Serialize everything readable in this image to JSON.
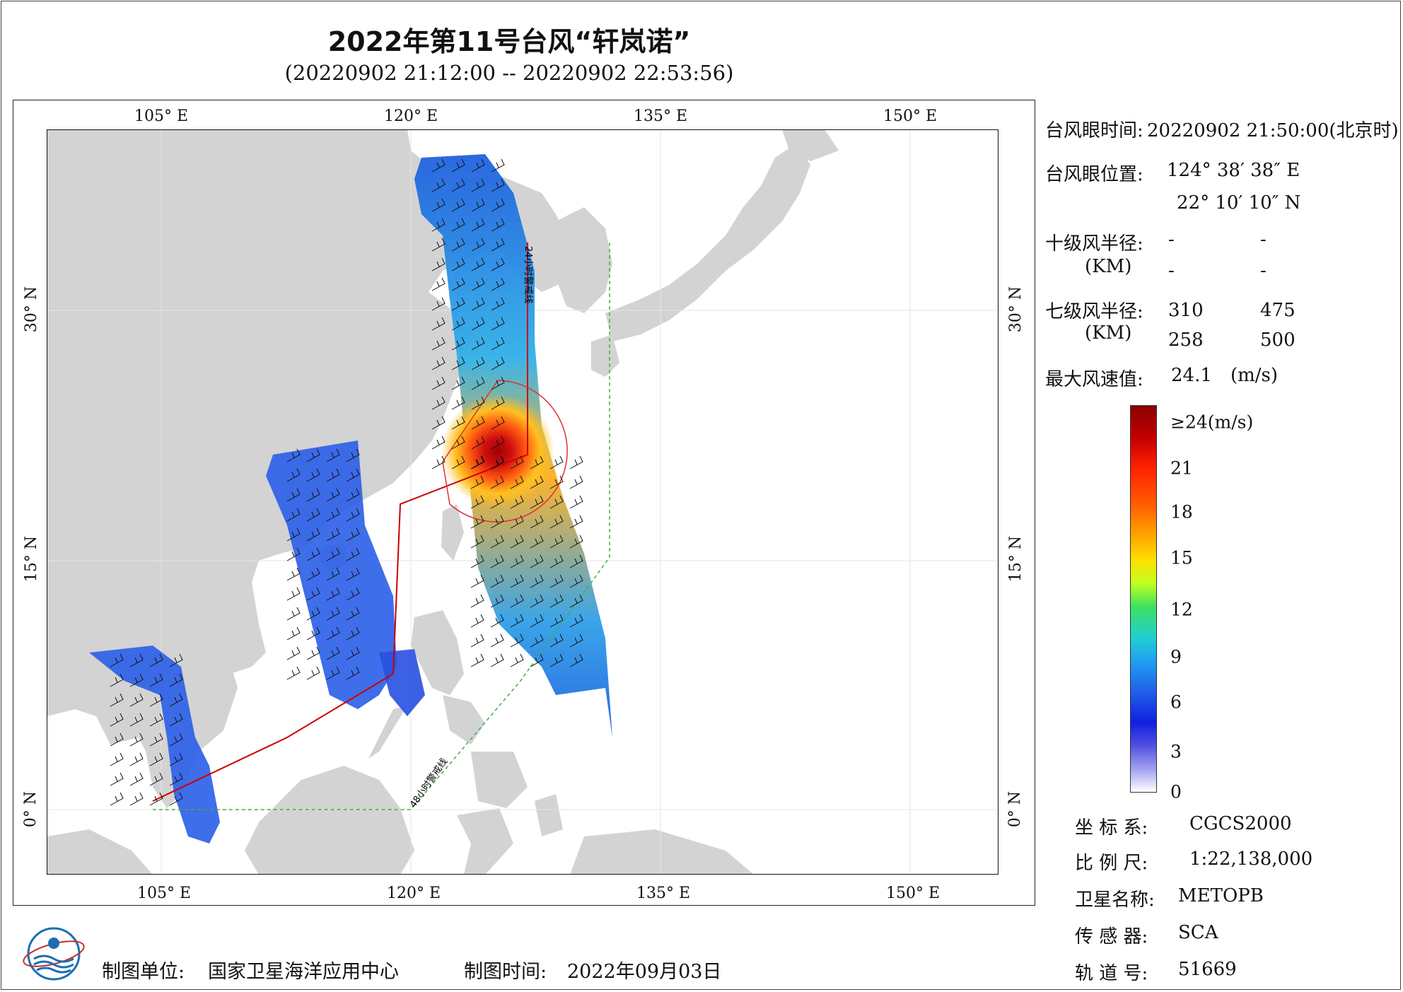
{
  "title": "2022年第11号台风“轩岚诺”",
  "subtitle": "(20220902 21:12:00 -- 20220902 22:53:56)",
  "lon_ticks_top": [
    "105° E",
    "120° E",
    "135° E",
    "150° E"
  ],
  "lon_ticks_bottom": [
    "105° E",
    "120° E",
    "135° E",
    "150° E"
  ],
  "lat_ticks": [
    "30° N",
    "15° N",
    "0° N"
  ],
  "line_labels": {
    "line24": "24小时警戒线",
    "line48": "48小时警戒线"
  },
  "colors": {
    "land": "#d3d3d3",
    "ocean": "#ffffff",
    "warn24": "#cc0000",
    "warn48": "#40b040",
    "circle": "#e03030"
  },
  "info": {
    "eye_time_label": "台风眼时间:",
    "eye_time_value": "20220902 21:50:00(北京时)",
    "eye_pos_label": "台风眼位置:",
    "eye_lon": "124° 38′ 38″ E",
    "eye_lat": "22° 10′ 10″ N",
    "r10_label": "十级风半径:",
    "r10_unit": "(KM)",
    "r10_values": [
      "-",
      "-",
      "-",
      "-"
    ],
    "r7_label": "七级风半径:",
    "r7_unit": "(KM)",
    "r7_values": [
      "310",
      "475",
      "258",
      "500"
    ],
    "max_wind_label": "最大风速值:",
    "max_wind_value": "24.1",
    "max_wind_unit": "(m/s)"
  },
  "colorbar": {
    "labels": [
      "≥24(m/s)",
      "21",
      "18",
      "15",
      "12",
      "9",
      "6",
      "3",
      "0"
    ],
    "values": [
      24,
      21,
      18,
      15,
      12,
      9,
      6,
      3,
      0
    ]
  },
  "meta": {
    "crs_label": "坐 标 系:",
    "crs_value": "CGCS2000",
    "scale_label": "比 例 尺:",
    "scale_value": "1:22,138,000",
    "sat_label": "卫星名称:",
    "sat_value": "METOPB",
    "sensor_label": "传 感 器:",
    "sensor_value": "SCA",
    "orbit_label": "轨 道 号:",
    "orbit_value": "51669"
  },
  "footer": {
    "org_label": "制图单位:",
    "org_value": "国家卫星海洋应用中心",
    "date_label": "制图时间:",
    "date_value": "2022年09月03日"
  }
}
